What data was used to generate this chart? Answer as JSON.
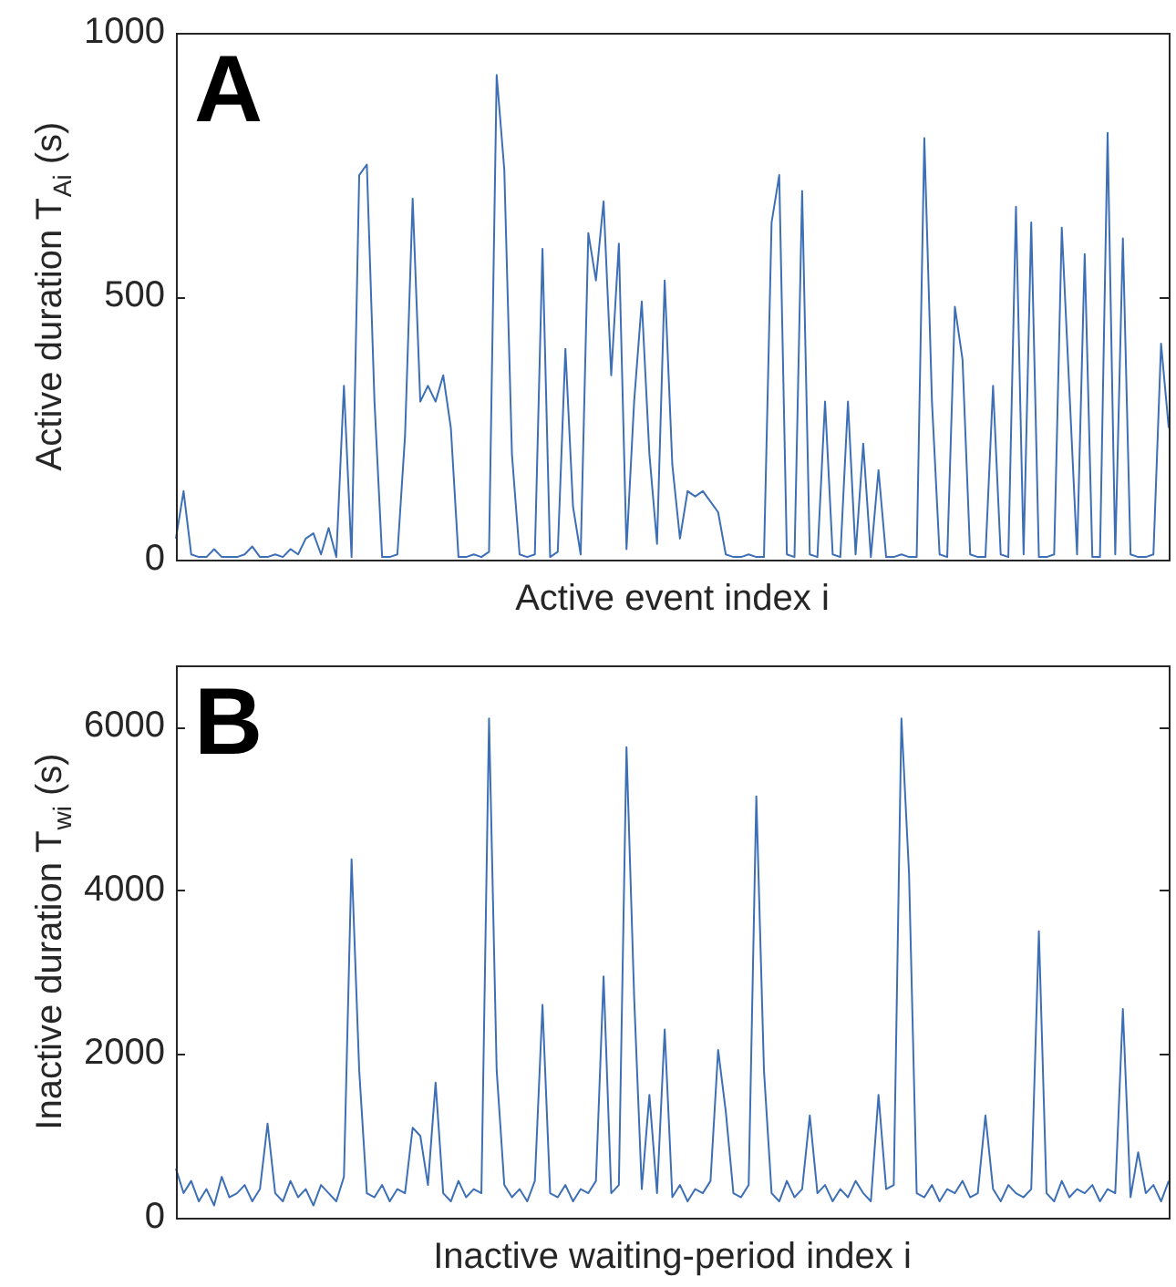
{
  "chart_data": [
    {
      "type": "line",
      "annotations": [
        "A"
      ],
      "xlabel": "Active event index i",
      "ylabel": "Active duration T$_{Ai}$ (s)",
      "ylim": [
        0,
        1000
      ],
      "yticks": [
        0,
        500,
        1000
      ],
      "grid": false,
      "legend": false,
      "marker": "none",
      "tick_labels": "y",
      "categories": [
        null,
        null,
        null,
        null,
        null,
        null,
        null,
        null,
        null,
        null,
        null,
        null,
        null,
        null,
        null,
        null,
        null,
        null,
        null,
        null,
        null,
        null,
        null,
        null,
        null,
        null,
        null,
        null,
        null,
        null,
        null,
        null,
        null,
        null,
        null,
        null,
        null,
        null,
        null,
        null,
        null,
        null,
        null,
        null,
        null,
        null,
        null,
        null,
        null,
        null,
        null,
        null,
        null,
        null,
        null,
        null,
        null,
        null,
        null,
        null,
        null,
        null,
        null,
        null,
        null,
        null,
        null,
        null,
        null,
        null,
        null,
        null,
        null,
        null,
        null,
        null,
        null,
        null,
        null,
        null,
        null,
        null,
        null,
        null,
        null,
        null,
        null,
        null,
        null,
        null,
        null,
        null,
        null,
        null,
        null,
        null,
        null,
        null,
        null,
        null,
        null,
        null,
        null,
        null,
        null,
        null,
        null,
        null,
        null,
        null,
        null,
        null,
        null,
        null,
        null,
        null,
        null,
        null,
        null,
        null,
        null,
        null,
        null,
        null,
        null,
        null,
        null,
        null,
        null,
        null,
        null
      ],
      "series": [
        {
          "color": "#3d6fb6",
          "values": [
            40,
            130,
            10,
            5,
            5,
            20,
            5,
            5,
            5,
            10,
            25,
            5,
            5,
            10,
            5,
            20,
            10,
            40,
            50,
            10,
            60,
            5,
            330,
            5,
            730,
            750,
            300,
            5,
            5,
            10,
            235,
            685,
            300,
            330,
            300,
            350,
            250,
            5,
            5,
            10,
            5,
            15,
            920,
            740,
            200,
            10,
            5,
            10,
            590,
            5,
            15,
            400,
            100,
            10,
            620,
            530,
            680,
            350,
            600,
            20,
            300,
            490,
            200,
            30,
            530,
            180,
            40,
            130,
            120,
            130,
            110,
            90,
            10,
            5,
            5,
            10,
            5,
            5,
            640,
            730,
            10,
            5,
            700,
            10,
            5,
            300,
            10,
            5,
            300,
            10,
            220,
            5,
            170,
            5,
            5,
            10,
            5,
            5,
            800,
            300,
            10,
            5,
            480,
            380,
            10,
            5,
            5,
            330,
            10,
            5,
            670,
            10,
            640,
            5,
            5,
            10,
            630,
            320,
            10,
            580,
            5,
            5,
            810,
            10,
            610,
            10,
            5,
            5,
            10,
            410,
            250
          ]
        }
      ]
    },
    {
      "type": "line",
      "annotations": [
        "B"
      ],
      "xlabel": "Inactive waiting-period index i",
      "ylabel": "Inactive duration T$_{wi}$ (s)",
      "ylim": [
        0,
        6750
      ],
      "yticks": [
        0,
        2000,
        4000,
        6000
      ],
      "grid": false,
      "legend": false,
      "marker": "none",
      "tick_labels": "y",
      "categories": [
        null,
        null,
        null,
        null,
        null,
        null,
        null,
        null,
        null,
        null,
        null,
        null,
        null,
        null,
        null,
        null,
        null,
        null,
        null,
        null,
        null,
        null,
        null,
        null,
        null,
        null,
        null,
        null,
        null,
        null,
        null,
        null,
        null,
        null,
        null,
        null,
        null,
        null,
        null,
        null,
        null,
        null,
        null,
        null,
        null,
        null,
        null,
        null,
        null,
        null,
        null,
        null,
        null,
        null,
        null,
        null,
        null,
        null,
        null,
        null,
        null,
        null,
        null,
        null,
        null,
        null,
        null,
        null,
        null,
        null,
        null,
        null,
        null,
        null,
        null,
        null,
        null,
        null,
        null,
        null,
        null,
        null,
        null,
        null,
        null,
        null,
        null,
        null,
        null,
        null,
        null,
        null,
        null,
        null,
        null,
        null,
        null,
        null,
        null,
        null,
        null,
        null,
        null,
        null,
        null,
        null,
        null,
        null,
        null,
        null,
        null,
        null,
        null,
        null,
        null,
        null,
        null,
        null,
        null,
        null,
        null,
        null,
        null,
        null,
        null,
        null,
        null,
        null,
        null,
        null,
        null
      ],
      "series": [
        {
          "color": "#3d6fb6",
          "values": [
            600,
            300,
            450,
            200,
            350,
            150,
            500,
            250,
            300,
            400,
            200,
            350,
            1150,
            300,
            200,
            450,
            250,
            350,
            150,
            400,
            300,
            200,
            500,
            4380,
            1800,
            300,
            250,
            400,
            200,
            350,
            300,
            1100,
            1000,
            400,
            1650,
            300,
            200,
            450,
            250,
            350,
            300,
            6100,
            1800,
            400,
            250,
            350,
            200,
            450,
            2600,
            300,
            250,
            400,
            200,
            350,
            300,
            450,
            2950,
            300,
            400,
            5750,
            2700,
            350,
            1500,
            300,
            2300,
            250,
            400,
            200,
            350,
            300,
            450,
            2050,
            1300,
            300,
            250,
            400,
            5150,
            1800,
            300,
            200,
            450,
            250,
            350,
            1250,
            300,
            400,
            200,
            350,
            250,
            450,
            300,
            200,
            1500,
            350,
            400,
            6100,
            4200,
            300,
            250,
            400,
            200,
            350,
            300,
            450,
            250,
            300,
            1250,
            350,
            200,
            400,
            300,
            250,
            350,
            3500,
            300,
            200,
            450,
            250,
            350,
            300,
            400,
            200,
            350,
            300,
            2550,
            250,
            800,
            300,
            400,
            200,
            450
          ]
        }
      ]
    }
  ]
}
